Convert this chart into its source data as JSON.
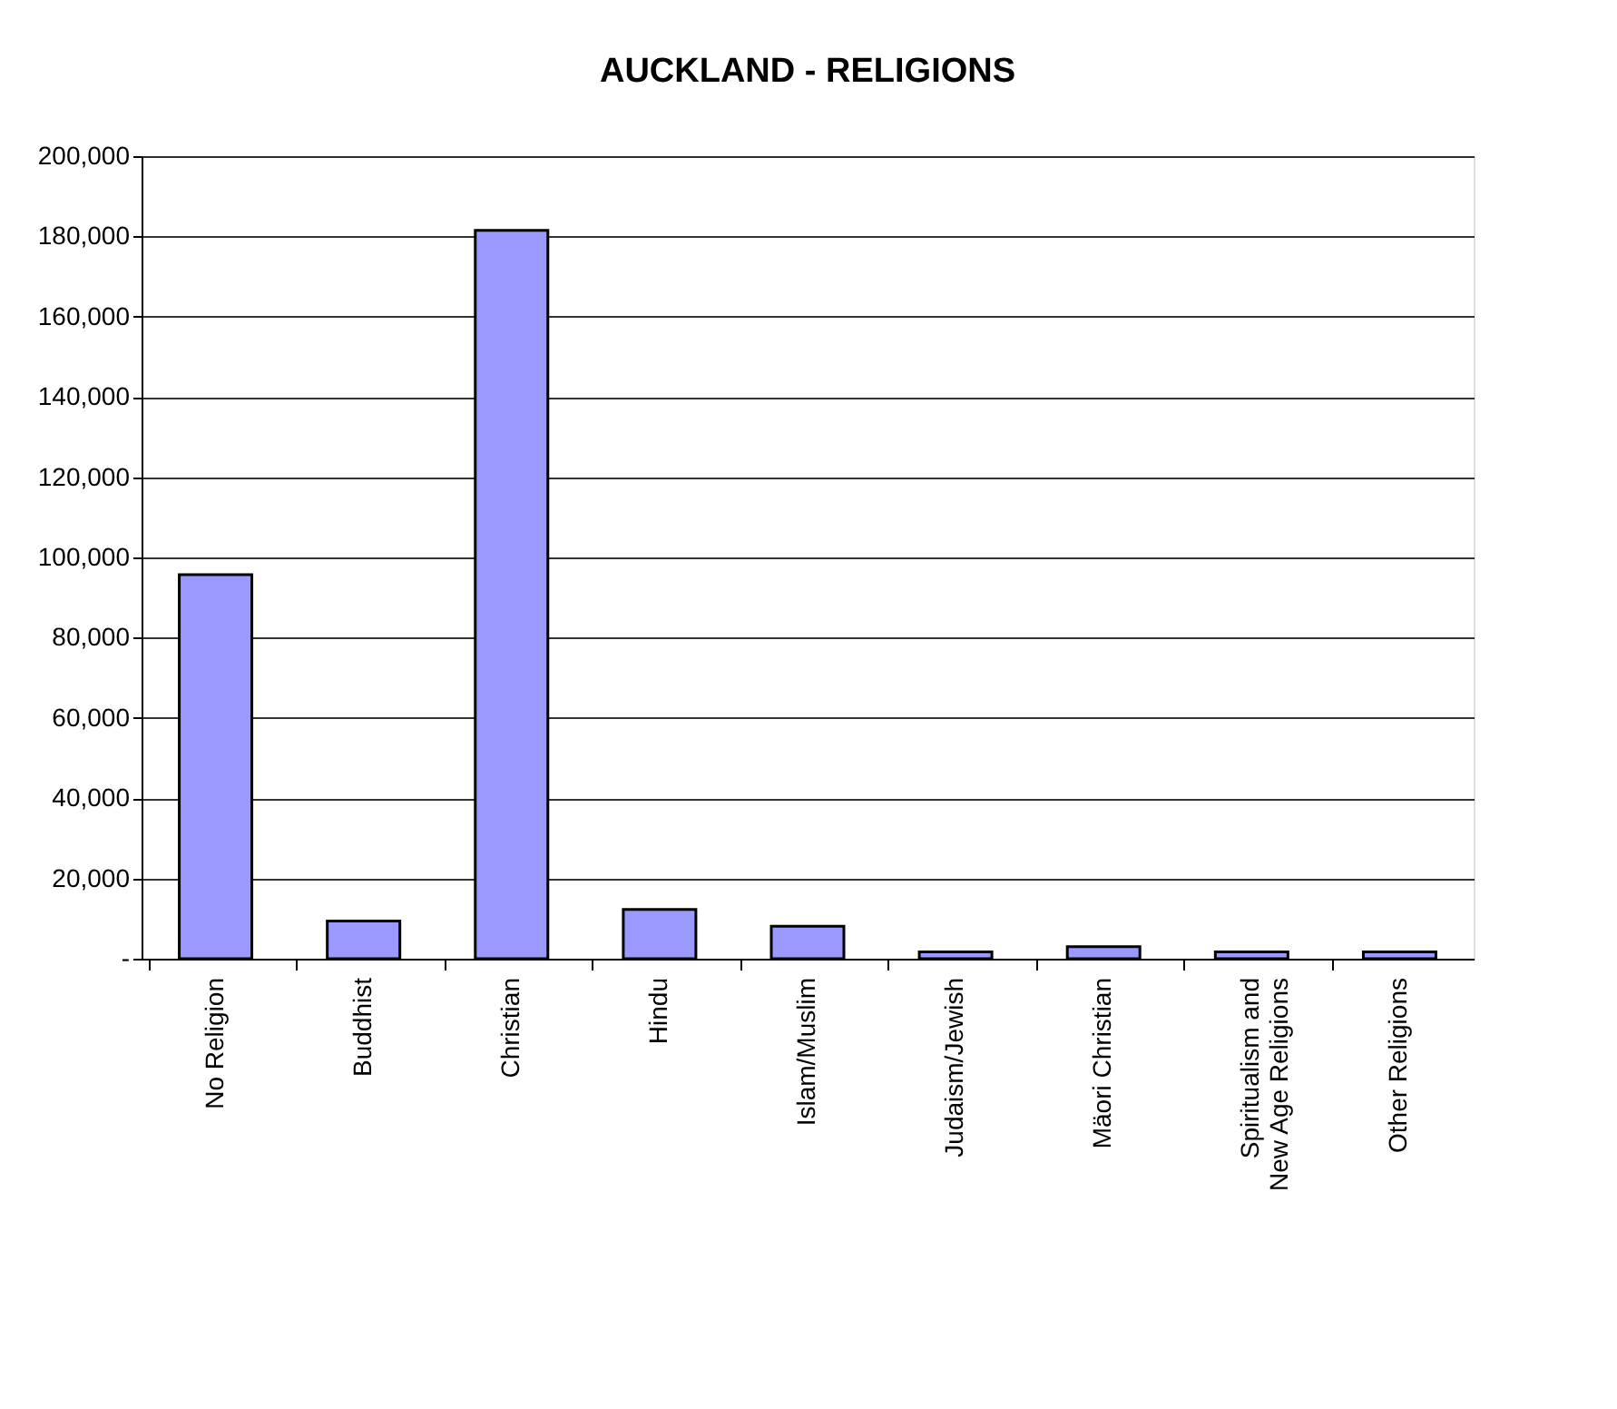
{
  "chart_data": {
    "type": "bar",
    "title": "AUCKLAND - RELIGIONS",
    "categories": [
      "No Religion",
      "Buddhist",
      "Christian",
      "Hindu",
      "Islam/Muslim",
      "Judaism/Jewish",
      "Mäori Christian",
      "Spiritualism and\nNew Age Religions",
      "Other Religions"
    ],
    "values": [
      95700,
      9400,
      181500,
      12300,
      8100,
      1700,
      3000,
      1700,
      1700
    ],
    "color": "#9999ff",
    "ylim": [
      0,
      200000
    ],
    "yticks": [
      {
        "value": 0,
        "label": "-"
      },
      {
        "value": 20000,
        "label": "20,000"
      },
      {
        "value": 40000,
        "label": "40,000"
      },
      {
        "value": 60000,
        "label": "60,000"
      },
      {
        "value": 80000,
        "label": "80,000"
      },
      {
        "value": 100000,
        "label": "100,000"
      },
      {
        "value": 120000,
        "label": "120,000"
      },
      {
        "value": 140000,
        "label": "140,000"
      },
      {
        "value": 160000,
        "label": "160,000"
      },
      {
        "value": 180000,
        "label": "180,000"
      },
      {
        "value": 200000,
        "label": "200,000"
      }
    ],
    "grid": "y"
  }
}
